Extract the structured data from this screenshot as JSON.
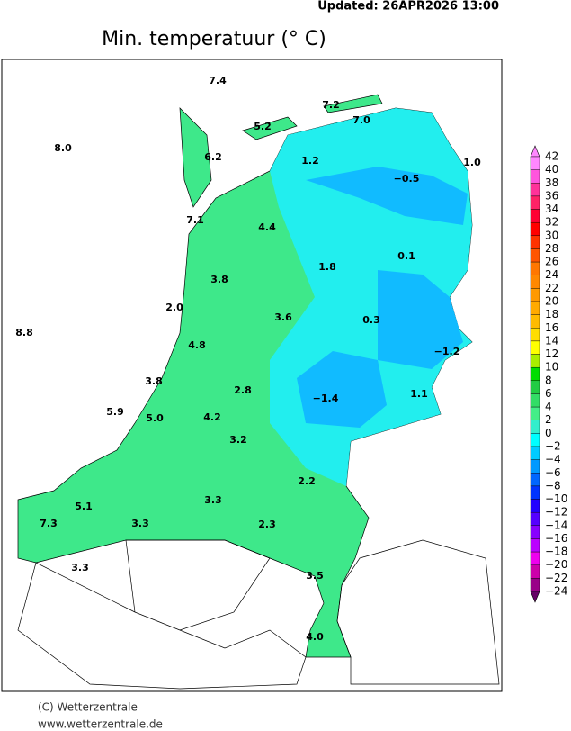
{
  "header": {
    "updated": "Updated:  26APR2026  13:00",
    "title": "Min. temperatuur (° C)"
  },
  "stations": [
    "7.4",
    "7.2",
    "5.2",
    "7.0",
    "8.0",
    "6.2",
    "1.2",
    "1.0",
    "−0.5",
    "7.1",
    "4.4",
    "0.1",
    "1.8",
    "3.8",
    "2.0",
    "3.6",
    "0.3",
    "8.8",
    "4.8",
    "−1.2",
    "3.8",
    "2.8",
    "−1.4",
    "1.1",
    "5.9",
    "5.0",
    "4.2",
    "3.2",
    "2.2",
    "3.3",
    "5.1",
    "7.3",
    "3.3",
    "2.3",
    "3.3",
    "3.5",
    "4.0"
  ],
  "legend": {
    "labels": [
      "42",
      "40",
      "38",
      "36",
      "34",
      "32",
      "30",
      "28",
      "26",
      "24",
      "22",
      "20",
      "18",
      "16",
      "14",
      "12",
      "10",
      "8",
      "6",
      "4",
      "2",
      "0",
      "−2",
      "−4",
      "−6",
      "−8",
      "−10",
      "−12",
      "−14",
      "−16",
      "−18",
      "−20",
      "−22",
      "−24"
    ],
    "colors": [
      "#ff88ff",
      "#ff55dd",
      "#ff3399",
      "#ff2266",
      "#ff0033",
      "#ff0000",
      "#ff3300",
      "#ff5500",
      "#ff7700",
      "#ff8800",
      "#ff9900",
      "#ffaa00",
      "#ffbb00",
      "#ffdd00",
      "#ffff00",
      "#aaee00",
      "#00dd00",
      "#22cc44",
      "#33dd66",
      "#44ee88",
      "#33eecc",
      "#00ffff",
      "#00ccff",
      "#0099ff",
      "#0066ff",
      "#0033ff",
      "#2200ff",
      "#5500ff",
      "#8800ff",
      "#bb00ff",
      "#ee00ee",
      "#cc00aa",
      "#990088",
      "#660066"
    ]
  },
  "footer": {
    "copyright": "(C) Wetterzentrale",
    "url": "www.wetterzentrale.de"
  }
}
